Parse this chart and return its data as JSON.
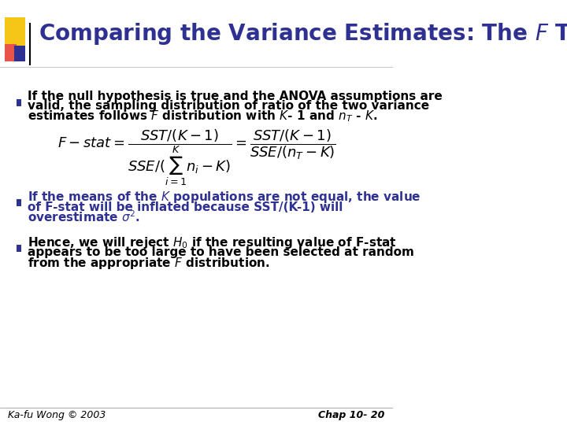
{
  "title": "Comparing the Variance Estimates: The $\\mathit{F}$ Test",
  "title_color": "#2E3191",
  "title_fontsize": 20,
  "bg_color": "#FFFFFF",
  "bullet_color": "#2E3191",
  "bullet1_text_line1": "If the null hypothesis is true and the ANOVA assumptions are",
  "bullet1_text_line2": "valid, the sampling distribution of ratio of the two variance",
  "bullet1_text_line3": "estimates follows $\\mathit{F}$ distribution with $\\mathit{K}$- 1 and $n_{\\mathit{T}}$ - $\\mathit{K}$.",
  "bullet2_text_line1": "If the means of the $\\mathit{K}$ populations are not equal, the value",
  "bullet2_text_line2": "of F-stat will be inflated because SST/(K-1) will",
  "bullet2_text_line3": "overestimate $\\sigma^2$.",
  "bullet3_text_line1": "Hence, we will reject $\\mathit{H_0}$ if the resulting value of F-stat",
  "bullet3_text_line2": "appears to be too large to have been selected at random",
  "bullet3_text_line3": "from the appropriate $\\mathit{F}$ distribution.",
  "formula": "$F - stat = \\dfrac{SST/(K-1)}{SSE/(\\sum_{i=1}^{K} n_i - K)} = \\dfrac{SST/(K-1)}{SSE/(n_T - K)}$",
  "footer_left": "Ka-fu Wong © 2003",
  "footer_right": "Chap 10- 20",
  "footer_color": "#000000",
  "footer_fontsize": 9,
  "accent_yellow": "#F5C518",
  "accent_red": "#E8534A",
  "accent_blue": "#2E3191",
  "header_line_color": "#000000"
}
